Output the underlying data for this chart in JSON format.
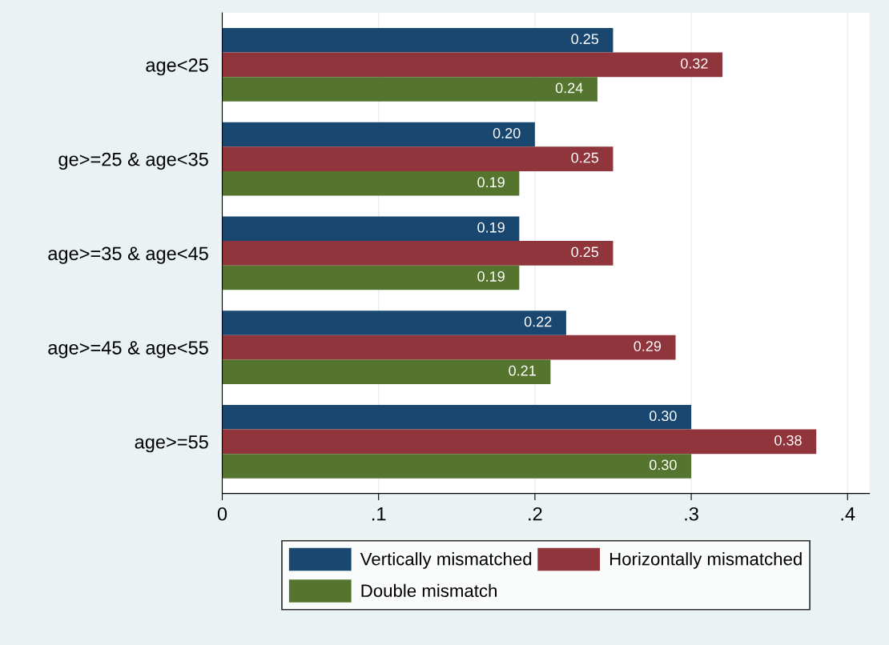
{
  "chart_data": {
    "type": "bar",
    "orientation": "horizontal",
    "categories": [
      "age<25",
      "ge>=25 & age<35",
      "age>=35 & age<45",
      "age>=45 & age<55",
      "age>=55"
    ],
    "series": [
      {
        "name": "Vertically mismatched",
        "color": "#1a476f",
        "values": [
          0.25,
          0.2,
          0.19,
          0.22,
          0.3
        ],
        "value_labels": [
          "0.25",
          "0.20",
          "0.19",
          "0.22",
          "0.30"
        ]
      },
      {
        "name": "Horizontally mismatched",
        "color": "#90353b",
        "values": [
          0.32,
          0.25,
          0.25,
          0.29,
          0.38
        ],
        "value_labels": [
          "0.32",
          "0.25",
          "0.25",
          "0.29",
          "0.38"
        ]
      },
      {
        "name": "Double mismatch",
        "color": "#55752f",
        "values": [
          0.24,
          0.19,
          0.19,
          0.21,
          0.3
        ],
        "value_labels": [
          "0.24",
          "0.19",
          "0.19",
          "0.21",
          "0.30"
        ]
      }
    ],
    "xlim": [
      0,
      0.414
    ],
    "xticks": [
      0,
      {
        "value": 0.1,
        "label": ".1"
      },
      {
        "value": 0.2,
        "label": ".2"
      },
      {
        "value": 0.3,
        "label": ".3"
      },
      {
        "value": 0.4,
        "label": ".4"
      }
    ],
    "grid": "x",
    "legend": "bottom"
  }
}
